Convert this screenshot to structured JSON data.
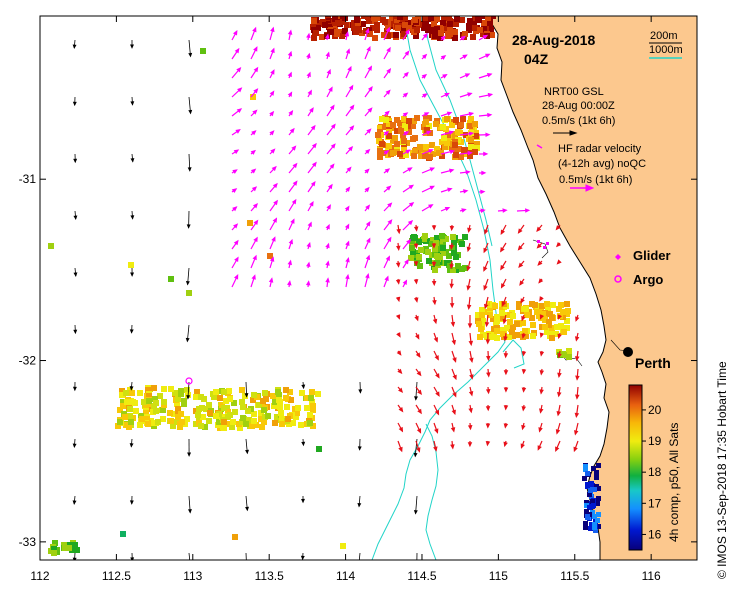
{
  "title": {
    "date": "28-Aug-2018",
    "time": "04Z"
  },
  "depth_legend": {
    "shallow": "200m",
    "deep": "1000m",
    "shallow_color": "#000000",
    "deep_color": "#21d4c8"
  },
  "wind_legend": {
    "line1": "NRT00 GSL",
    "line2": "28-Aug 00:00Z",
    "scale": "0.5m/s (1kt 6h)"
  },
  "radar_legend": {
    "line1": "HF radar velocity",
    "line2": "(4-12h avg) noQC",
    "scale": "0.5m/s (1kt 6h)",
    "color": "#ff00ff"
  },
  "glider": {
    "label": "Glider",
    "color": "#ff00ff"
  },
  "argo": {
    "label": "Argo",
    "color": "#ff00ff"
  },
  "city": {
    "label": "Perth"
  },
  "colorbar": {
    "label": "4h comp, p50, All Sats",
    "ticks": [
      "16",
      "17",
      "18",
      "19",
      "20"
    ],
    "min": 15.5,
    "max": 20.8
  },
  "credit": "© IMOS 13-Sep-2018 17:35 Hobart Time",
  "axes": {
    "x_ticks": [
      "112",
      "112.5",
      "113",
      "113.5",
      "114",
      "114.5",
      "115",
      "115.5",
      "116"
    ],
    "y_ticks": [
      "-31",
      "-32",
      "-33"
    ],
    "xlim": [
      112,
      116.3
    ],
    "ylim": [
      -33.1,
      -30.1
    ]
  },
  "colors": {
    "land": "#fcc88e",
    "radar_red": "#e8101a",
    "radar_magenta": "#ff00ff",
    "wind": "#000000",
    "isobath": "#21d4c8"
  }
}
